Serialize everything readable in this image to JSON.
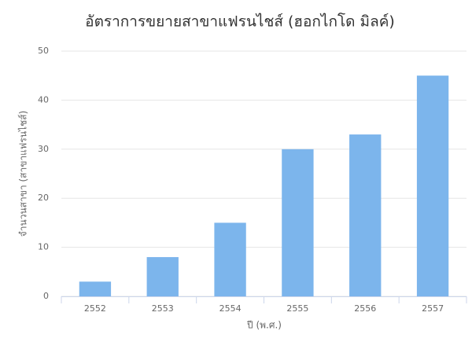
{
  "chart_data": {
    "type": "bar",
    "title": "อัตราการขยายสาขาแฟรนไชส์ (ฮอกไกโด มิลค์)",
    "x_label": "ปี (พ.ศ.)",
    "y_label": "จำนวนสาขา (สาขาแฟรนไชส์)",
    "categories": [
      "2552",
      "2553",
      "2554",
      "2555",
      "2556",
      "2557"
    ],
    "values": [
      3,
      8,
      15,
      30,
      33,
      45
    ],
    "color": "#7cb5ec",
    "ylim": [
      0,
      50
    ],
    "yticks": [
      0,
      10,
      20,
      30,
      40,
      50
    ],
    "grid": true
  }
}
